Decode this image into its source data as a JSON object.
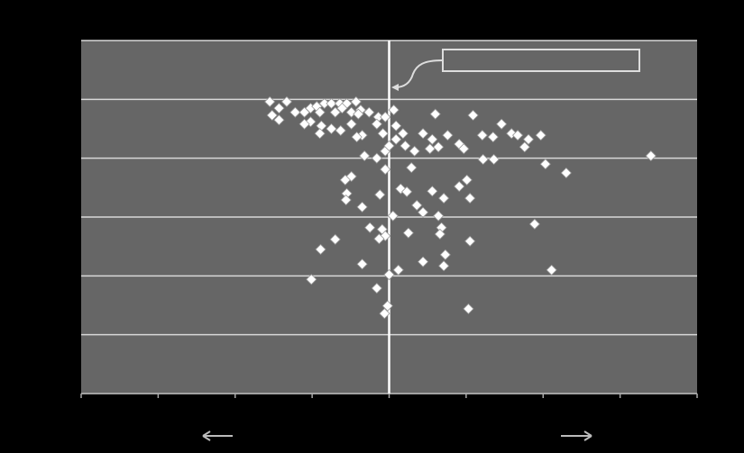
{
  "chart_data": {
    "type": "scatter",
    "x": [
      -1.55,
      -1.33,
      -1.43,
      -1.52,
      -1.43,
      -1.22,
      -1.1,
      -1.02,
      -0.94,
      -0.84,
      -0.75,
      -0.64,
      -0.55,
      -0.43,
      -0.37,
      -0.49,
      -0.61,
      -0.7,
      -0.9,
      -1.02,
      -1.1,
      -0.88,
      -0.9,
      -0.75,
      -0.63,
      -0.49,
      -0.4,
      -0.26,
      -0.14,
      -0.05,
      0.06,
      -0.08,
      -0.16,
      -0.35,
      -0.42,
      0.09,
      0.18,
      0.09,
      0.21,
      0.33,
      0.44,
      0.56,
      0.6,
      0.76,
      0.64,
      0.53,
      0.91,
      0.97,
      1.09,
      1.21,
      1.35,
      1.46,
      1.59,
      1.67,
      1.81,
      1.97,
      1.76,
      1.22,
      1.36,
      2.03,
      2.3,
      3.4,
      -0.32,
      -0.16,
      -0.05,
      0,
      -0.05,
      0.29,
      -0.49,
      -0.57,
      -0.55,
      -0.56,
      -0.35,
      -0.12,
      0.15,
      0.23,
      0.44,
      0.36,
      0.56,
      0.71,
      0.91,
      1.01,
      1.05,
      0.05,
      0.64,
      0.68,
      0.66,
      0.25,
      -0.09,
      -0.05,
      -0.13,
      -0.25,
      -0.7,
      -0.89,
      1.05,
      1.89,
      -0.35,
      0.44,
      0.73,
      0.71,
      0.12,
      0,
      -1.01,
      -0.16,
      2.11,
      -0.02,
      -0.06,
      1.03
    ],
    "values": [
      4.96,
      4.96,
      4.85,
      4.73,
      4.65,
      4.78,
      4.78,
      4.85,
      4.88,
      4.93,
      4.93,
      4.93,
      4.93,
      4.96,
      4.82,
      4.78,
      4.85,
      4.78,
      4.78,
      4.62,
      4.58,
      4.55,
      4.42,
      4.5,
      4.47,
      4.58,
      4.75,
      4.78,
      4.7,
      4.7,
      4.82,
      4.42,
      4.58,
      4.39,
      4.36,
      4.55,
      4.42,
      4.32,
      4.21,
      4.12,
      4.42,
      4.32,
      4.75,
      4.39,
      4.19,
      4.16,
      4.24,
      4.16,
      4.73,
      4.39,
      4.36,
      4.58,
      4.42,
      4.39,
      4.32,
      4.39,
      4.19,
      3.98,
      3.98,
      3.9,
      3.75,
      4.04,
      4.04,
      4.0,
      4.12,
      4.21,
      3.81,
      3.84,
      3.69,
      3.63,
      3.4,
      3.29,
      3.17,
      3.38,
      3.48,
      3.43,
      3.08,
      3.2,
      3.44,
      3.32,
      3.52,
      3.63,
      3.32,
      3.02,
      3.02,
      2.82,
      2.71,
      2.73,
      2.79,
      2.68,
      2.63,
      2.82,
      2.62,
      2.45,
      2.59,
      2.88,
      2.2,
      2.24,
      2.36,
      2.17,
      2.1,
      2.02,
      1.94,
      1.79,
      2.1,
      1.49,
      1.36,
      1.44
    ],
    "color": "#ffffff",
    "xlim": [
      -4,
      4
    ],
    "xticks": [
      -4,
      -3,
      -2,
      -1,
      0,
      1,
      2,
      3,
      4
    ],
    "ylim": [
      0,
      6
    ],
    "yticks": [
      0,
      1,
      2,
      3,
      4,
      5,
      6
    ],
    "grid": true,
    "vline": 0
  }
}
